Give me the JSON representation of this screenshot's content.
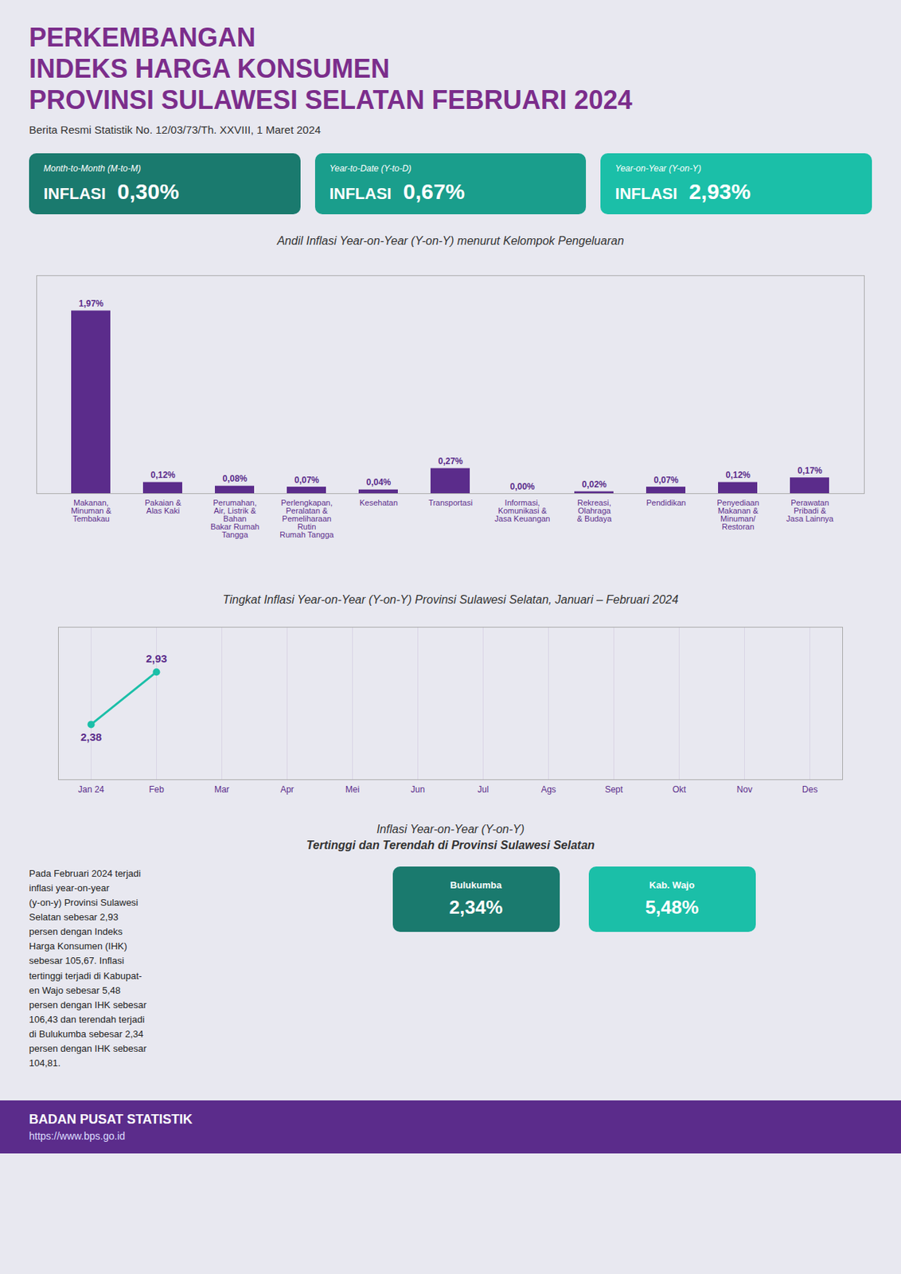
{
  "background": "#E8E8F0",
  "title": [
    "PERKEMBANGAN",
    "INDEKS HARGA KONSUMEN",
    "PROVINSI SULAWESI SELATAN FEBRUARI 2024"
  ],
  "title_color": "#7B2D8B",
  "subtitle": "Berita Resmi Statistik No. 12/03/73/Th. XXVIII, 1 Maret 2024",
  "cards": [
    {
      "label": "Month-to-Month (M-to-M)",
      "title": "INFLASI",
      "text": "0,30%",
      "color": "#1A7A6E"
    },
    {
      "label": "Year-to-Date (Y-to-D)",
      "title": "INFLASI",
      "text": "0,67%",
      "color": "#1A9E8C"
    },
    {
      "label": "Year-on-Year (Y-on-Y)",
      "title": "INFLASI",
      "text": "2,93%",
      "color": "#1BBFA8"
    }
  ],
  "chart_data": [
    {
      "type": "bar",
      "title": "Andil Inflasi Year-on-Year (Y-on-Y) menurut Kelompok Pengeluaran",
      "categories": [
        "Makanan,\nMinuman &\nTembakau",
        "Pakaian &\nAlas Kaki",
        "Perumahan,\nAir, Listrik &\nBahan\nBakar Rumah\nTangga",
        "Perlengkapan,\nPeralatan &\nPemeliharaan\nRutin\nRumah Tangga",
        "Kesehatan",
        "Transportasi",
        "Informasi,\nKomunikasi &\nJasa Keuangan",
        "Rekreasi,\nOlahraga\n& Budaya",
        "Pendidikan",
        "Penyediaan\nMakanan &\nMinuman/\nRestoran",
        "Perawatan\nPribadi &\nJasa Lainnya"
      ],
      "values": [
        1.97,
        0.12,
        0.08,
        0.07,
        0.04,
        0.27,
        0.0,
        0.02,
        0.07,
        0.12,
        0.17
      ],
      "value_labels": [
        "1,97%",
        "0,12%",
        "0,08%",
        "0,07%",
        "0,04%",
        "0,27%",
        "0,00%",
        "0,02%",
        "0,07%",
        "0,12%",
        "0,17%"
      ],
      "data_labels": true,
      "color": "#5B2C8B",
      "ylim": [
        0,
        2.35
      ],
      "grid": false,
      "tick_labels": "x"
    },
    {
      "type": "line",
      "title": "Tingkat Inflasi Year-on-Year (Y-on-Y) Provinsi Sulawesi Selatan, Januari – Februari 2024",
      "categories": [
        "Jan 24",
        "Feb",
        "Mar",
        "Apr",
        "Mei",
        "Jun",
        "Jul",
        "Ags",
        "Sept",
        "Okt",
        "Nov",
        "Des"
      ],
      "values": [
        2.38,
        2.93,
        null,
        null,
        null,
        null,
        null,
        null,
        null,
        null,
        null,
        null
      ],
      "value_labels": [
        "2,38",
        "2,93",
        null,
        null,
        null,
        null,
        null,
        null,
        null,
        null,
        null,
        null
      ],
      "data_labels": true,
      "color": "#1BBFA8",
      "marker": "circle",
      "ylim": [
        1.8,
        3.4
      ],
      "grid": true,
      "tick_labels": "x"
    }
  ],
  "map": {
    "title": [
      "Inflasi Year-on-Year (Y-on-Y)",
      "Tertinggi dan Terendah di Provinsi Sulawesi Selatan"
    ],
    "items": [
      {
        "name": "Bulukumba",
        "text": "2,34%",
        "color": "#1A7A6E"
      },
      {
        "name": "Kab. Wajo",
        "text": "5,48%",
        "color": "#1BBFA8"
      }
    ]
  },
  "description": "Pada Februari 2024 terjadi\ninflasi year-on-year\n(y-on-y) Provinsi Sulawesi\nSelatan sebesar 2,93\npersen dengan Indeks\nHarga Konsumen (IHK)\nsebesar 105,67. Inflasi\ntertinggi terjadi di Kabupat-\nen Wajo sebesar 5,48\npersen dengan IHK sebesar\n106,43 dan terendah terjadi\ndi Bulukumba sebesar 2,34\npersen dengan IHK sebesar\n104,81.",
  "footer": [
    "BADAN PUSAT STATISTIK",
    "https://www.bps.go.id"
  ],
  "footer_color": "#5B2C8B"
}
